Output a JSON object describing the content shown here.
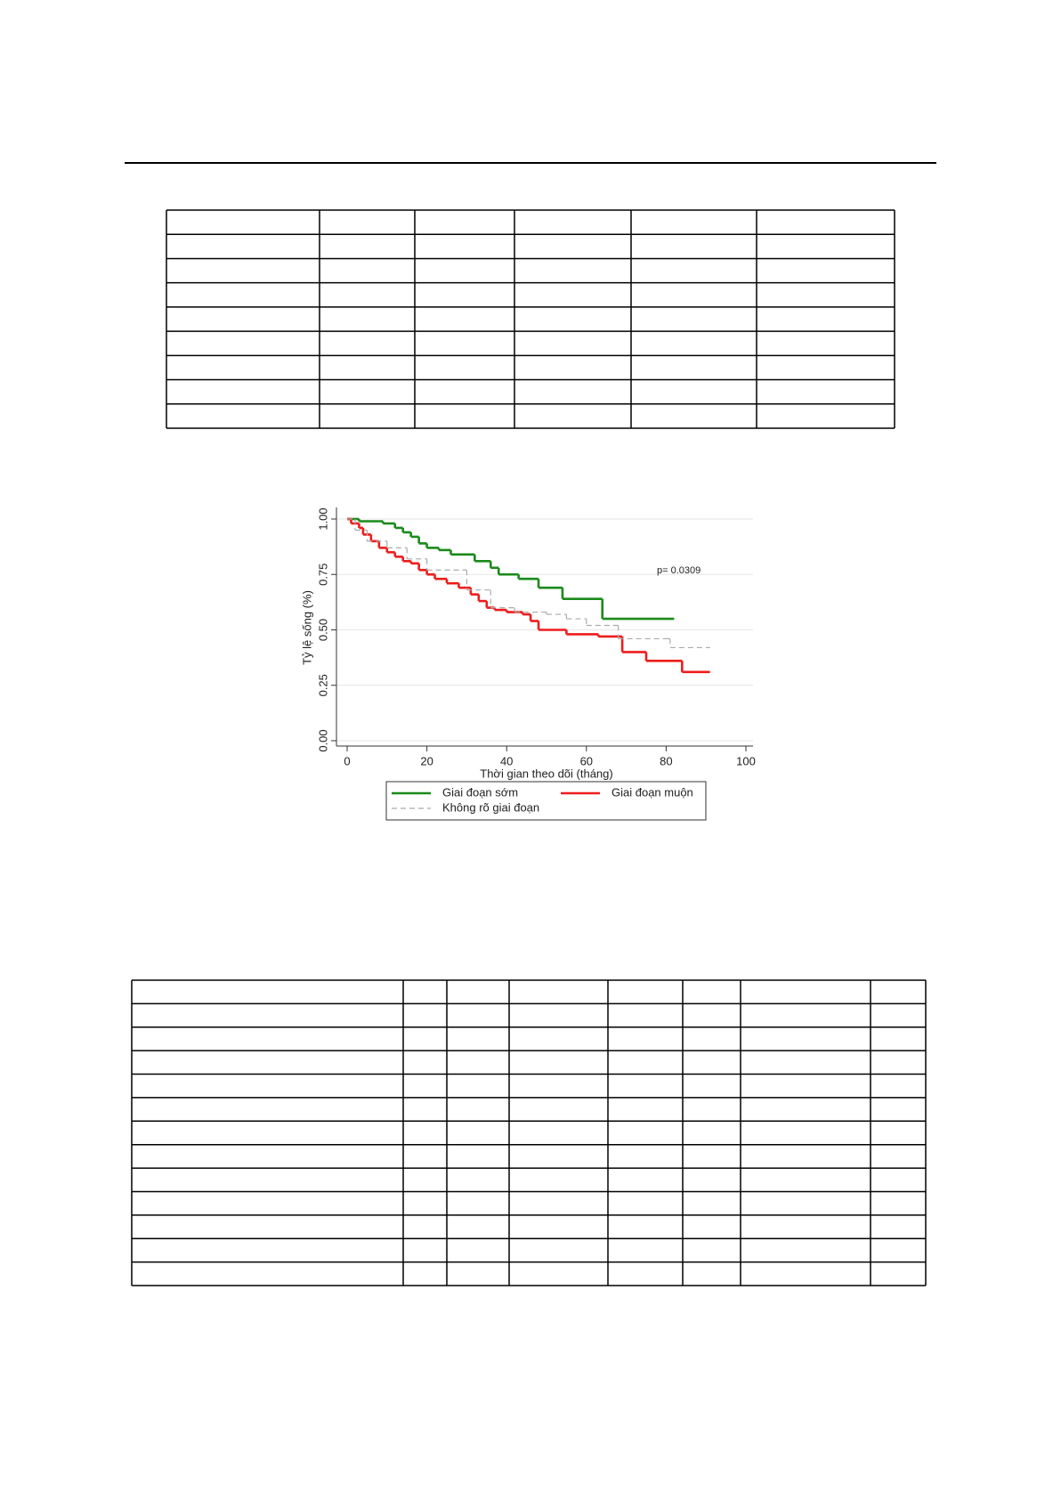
{
  "chart_data": {
    "type": "step",
    "annotation": "p= 0.0309",
    "x_label": "Thời gian theo dõi (tháng)",
    "y_label": "Tỷ lệ sống (%)",
    "xlim": [
      0,
      100
    ],
    "ylim": [
      0,
      1
    ],
    "xticks": [
      0,
      20,
      40,
      60,
      80,
      100
    ],
    "yticks": [
      {
        "value": 0,
        "label": "0.00"
      },
      {
        "value": 0.25,
        "label": "0.25"
      },
      {
        "value": 0.5,
        "label": "0.50"
      },
      {
        "value": 0.75,
        "label": "0.75"
      },
      {
        "value": 1,
        "label": "1.00"
      }
    ],
    "grid": true,
    "series": [
      {
        "name": "Giai đoạn sớm",
        "color": "#1a8a1a",
        "style": "solid",
        "x": [
          0,
          3,
          9,
          12,
          14,
          16,
          18,
          20,
          23,
          26,
          32,
          36,
          38,
          43,
          48,
          54,
          64,
          82
        ],
        "values": [
          1.0,
          0.99,
          0.98,
          0.96,
          0.94,
          0.92,
          0.89,
          0.87,
          0.86,
          0.84,
          0.81,
          0.78,
          0.75,
          0.73,
          0.69,
          0.64,
          0.55,
          0.55
        ]
      },
      {
        "name": "Giai đoạn muộn",
        "color": "#ee1c1c",
        "style": "solid",
        "x": [
          0,
          1,
          3,
          4,
          6,
          8,
          10,
          12,
          14,
          16,
          18,
          20,
          22,
          25,
          28,
          31,
          33,
          35,
          37,
          40,
          44,
          46,
          48,
          55,
          63,
          69,
          75,
          84,
          91
        ],
        "values": [
          1.0,
          0.98,
          0.96,
          0.93,
          0.9,
          0.87,
          0.85,
          0.83,
          0.81,
          0.8,
          0.77,
          0.75,
          0.73,
          0.71,
          0.69,
          0.66,
          0.63,
          0.6,
          0.59,
          0.58,
          0.57,
          0.54,
          0.5,
          0.48,
          0.47,
          0.4,
          0.36,
          0.31,
          0.31
        ]
      },
      {
        "name": "Không rõ giai đoạn",
        "color": "#aaaaaa",
        "style": "dashed",
        "x": [
          0,
          2,
          5,
          10,
          15,
          20,
          30,
          36,
          42,
          50,
          55,
          60,
          68,
          80,
          81,
          91
        ],
        "values": [
          1.0,
          0.95,
          0.9,
          0.87,
          0.82,
          0.77,
          0.68,
          0.6,
          0.58,
          0.57,
          0.55,
          0.52,
          0.46,
          0.46,
          0.42,
          0.42
        ]
      }
    ]
  }
}
